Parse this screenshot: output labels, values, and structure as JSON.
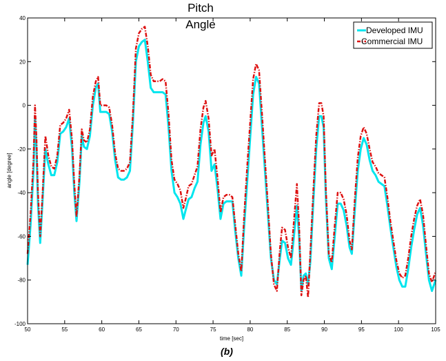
{
  "chart_data": {
    "type": "line",
    "title_lines": [
      "Pitch",
      "Angle"
    ],
    "xlabel": "time [sec]",
    "ylabel": "angle [degree]",
    "caption": "(b)",
    "xlim": [
      50,
      105
    ],
    "ylim": [
      -100,
      40
    ],
    "xticks": [
      50,
      55,
      60,
      65,
      70,
      75,
      80,
      85,
      90,
      95,
      100,
      105
    ],
    "yticks": [
      -100,
      -80,
      -60,
      -40,
      -20,
      0,
      20,
      40
    ],
    "grid": false,
    "legend_position": "top-right",
    "series": [
      {
        "name": "Developed IMU",
        "color": "#00e5ee",
        "style": "solid",
        "points": [
          [
            50.0,
            -73
          ],
          [
            50.4,
            -55
          ],
          [
            50.8,
            -30
          ],
          [
            51.0,
            -5
          ],
          [
            51.2,
            -20
          ],
          [
            51.4,
            -45
          ],
          [
            51.7,
            -63
          ],
          [
            52.0,
            -45
          ],
          [
            52.4,
            -20
          ],
          [
            52.8,
            -27
          ],
          [
            53.2,
            -32
          ],
          [
            53.6,
            -32
          ],
          [
            54.0,
            -26
          ],
          [
            54.4,
            -13
          ],
          [
            54.8,
            -12
          ],
          [
            55.2,
            -10
          ],
          [
            55.6,
            -6
          ],
          [
            56.0,
            -20
          ],
          [
            56.3,
            -40
          ],
          [
            56.6,
            -53
          ],
          [
            57.0,
            -35
          ],
          [
            57.3,
            -14
          ],
          [
            57.6,
            -19
          ],
          [
            58.0,
            -20
          ],
          [
            58.4,
            -14
          ],
          [
            58.8,
            0
          ],
          [
            59.2,
            8
          ],
          [
            59.5,
            10
          ],
          [
            59.8,
            -3
          ],
          [
            60.2,
            -3
          ],
          [
            60.6,
            -3
          ],
          [
            61.0,
            -4
          ],
          [
            61.4,
            -12
          ],
          [
            61.8,
            -25
          ],
          [
            62.2,
            -33
          ],
          [
            62.6,
            -34
          ],
          [
            63.0,
            -34
          ],
          [
            63.4,
            -33
          ],
          [
            63.8,
            -30
          ],
          [
            64.2,
            -8
          ],
          [
            64.6,
            20
          ],
          [
            65.0,
            27
          ],
          [
            65.4,
            29
          ],
          [
            65.8,
            30
          ],
          [
            66.2,
            20
          ],
          [
            66.6,
            8
          ],
          [
            67.0,
            6
          ],
          [
            67.4,
            6
          ],
          [
            67.8,
            6
          ],
          [
            68.2,
            6
          ],
          [
            68.6,
            5
          ],
          [
            69.0,
            -10
          ],
          [
            69.4,
            -30
          ],
          [
            69.8,
            -40
          ],
          [
            70.2,
            -42
          ],
          [
            70.6,
            -45
          ],
          [
            71.0,
            -52
          ],
          [
            71.3,
            -48
          ],
          [
            71.7,
            -43
          ],
          [
            72.1,
            -42
          ],
          [
            72.5,
            -38
          ],
          [
            72.9,
            -35
          ],
          [
            73.3,
            -18
          ],
          [
            73.7,
            -8
          ],
          [
            74.0,
            -5
          ],
          [
            74.4,
            -12
          ],
          [
            74.8,
            -30
          ],
          [
            75.2,
            -27
          ],
          [
            75.6,
            -38
          ],
          [
            76.0,
            -52
          ],
          [
            76.4,
            -45
          ],
          [
            76.8,
            -44
          ],
          [
            77.2,
            -44
          ],
          [
            77.6,
            -44
          ],
          [
            78.0,
            -58
          ],
          [
            78.4,
            -70
          ],
          [
            78.8,
            -78
          ],
          [
            79.2,
            -55
          ],
          [
            79.6,
            -35
          ],
          [
            80.0,
            -15
          ],
          [
            80.4,
            5
          ],
          [
            80.8,
            13
          ],
          [
            81.2,
            10
          ],
          [
            81.6,
            -10
          ],
          [
            82.0,
            -30
          ],
          [
            82.4,
            -50
          ],
          [
            82.8,
            -70
          ],
          [
            83.2,
            -80
          ],
          [
            83.6,
            -82
          ],
          [
            84.0,
            -70
          ],
          [
            84.3,
            -62
          ],
          [
            84.7,
            -63
          ],
          [
            85.1,
            -70
          ],
          [
            85.5,
            -73
          ],
          [
            85.9,
            -60
          ],
          [
            86.3,
            -46
          ],
          [
            86.6,
            -60
          ],
          [
            86.9,
            -85
          ],
          [
            87.2,
            -78
          ],
          [
            87.5,
            -77
          ],
          [
            87.8,
            -82
          ],
          [
            88.1,
            -72
          ],
          [
            88.5,
            -45
          ],
          [
            88.9,
            -20
          ],
          [
            89.3,
            -5
          ],
          [
            89.6,
            -5
          ],
          [
            89.9,
            -10
          ],
          [
            90.2,
            -42
          ],
          [
            90.6,
            -70
          ],
          [
            91.0,
            -75
          ],
          [
            91.4,
            -60
          ],
          [
            91.8,
            -45
          ],
          [
            92.2,
            -45
          ],
          [
            92.6,
            -48
          ],
          [
            93.0,
            -55
          ],
          [
            93.4,
            -65
          ],
          [
            93.7,
            -68
          ],
          [
            94.1,
            -48
          ],
          [
            94.5,
            -30
          ],
          [
            94.9,
            -20
          ],
          [
            95.3,
            -15
          ],
          [
            95.7,
            -18
          ],
          [
            96.1,
            -25
          ],
          [
            96.5,
            -30
          ],
          [
            96.9,
            -32
          ],
          [
            97.3,
            -35
          ],
          [
            97.7,
            -36
          ],
          [
            98.1,
            -37
          ],
          [
            98.5,
            -46
          ],
          [
            98.9,
            -56
          ],
          [
            99.3,
            -65
          ],
          [
            99.7,
            -74
          ],
          [
            100.1,
            -80
          ],
          [
            100.5,
            -83
          ],
          [
            100.9,
            -83
          ],
          [
            101.3,
            -75
          ],
          [
            101.7,
            -65
          ],
          [
            102.1,
            -57
          ],
          [
            102.5,
            -50
          ],
          [
            102.9,
            -47
          ],
          [
            103.3,
            -55
          ],
          [
            103.7,
            -68
          ],
          [
            104.1,
            -80
          ],
          [
            104.5,
            -85
          ],
          [
            105.0,
            -80
          ]
        ]
      },
      {
        "name": "Commercial IMU",
        "color": "#dd1111",
        "style": "dash-dot",
        "points": [
          [
            50.0,
            -68
          ],
          [
            50.4,
            -50
          ],
          [
            50.8,
            -25
          ],
          [
            51.0,
            0
          ],
          [
            51.2,
            -15
          ],
          [
            51.4,
            -40
          ],
          [
            51.7,
            -60
          ],
          [
            52.0,
            -42
          ],
          [
            52.4,
            -14
          ],
          [
            52.8,
            -23
          ],
          [
            53.2,
            -28
          ],
          [
            53.6,
            -29
          ],
          [
            54.0,
            -23
          ],
          [
            54.4,
            -9
          ],
          [
            54.8,
            -8
          ],
          [
            55.2,
            -6
          ],
          [
            55.6,
            -2
          ],
          [
            56.0,
            -16
          ],
          [
            56.3,
            -36
          ],
          [
            56.6,
            -51
          ],
          [
            57.0,
            -32
          ],
          [
            57.3,
            -11
          ],
          [
            57.6,
            -16
          ],
          [
            58.0,
            -17
          ],
          [
            58.4,
            -11
          ],
          [
            58.8,
            4
          ],
          [
            59.2,
            11
          ],
          [
            59.5,
            13
          ],
          [
            59.8,
            0
          ],
          [
            60.2,
            0
          ],
          [
            60.6,
            0
          ],
          [
            61.0,
            -1
          ],
          [
            61.4,
            -9
          ],
          [
            61.8,
            -22
          ],
          [
            62.2,
            -29
          ],
          [
            62.6,
            -30
          ],
          [
            63.0,
            -30
          ],
          [
            63.4,
            -29
          ],
          [
            63.8,
            -26
          ],
          [
            64.2,
            -4
          ],
          [
            64.6,
            26
          ],
          [
            65.0,
            33
          ],
          [
            65.4,
            35
          ],
          [
            65.8,
            36
          ],
          [
            66.2,
            27
          ],
          [
            66.6,
            14
          ],
          [
            67.0,
            11
          ],
          [
            67.4,
            11
          ],
          [
            67.8,
            11
          ],
          [
            68.2,
            12
          ],
          [
            68.6,
            11
          ],
          [
            69.0,
            -4
          ],
          [
            69.4,
            -25
          ],
          [
            69.8,
            -34
          ],
          [
            70.2,
            -36
          ],
          [
            70.6,
            -39
          ],
          [
            71.0,
            -47
          ],
          [
            71.3,
            -43
          ],
          [
            71.7,
            -37
          ],
          [
            72.1,
            -36
          ],
          [
            72.5,
            -32
          ],
          [
            72.9,
            -28
          ],
          [
            73.3,
            -11
          ],
          [
            73.7,
            -1
          ],
          [
            74.0,
            2
          ],
          [
            74.4,
            -6
          ],
          [
            74.8,
            -23
          ],
          [
            75.2,
            -20
          ],
          [
            75.6,
            -33
          ],
          [
            76.0,
            -49
          ],
          [
            76.4,
            -42
          ],
          [
            76.8,
            -41
          ],
          [
            77.2,
            -41
          ],
          [
            77.6,
            -42
          ],
          [
            78.0,
            -55
          ],
          [
            78.4,
            -68
          ],
          [
            78.8,
            -76
          ],
          [
            79.2,
            -50
          ],
          [
            79.6,
            -28
          ],
          [
            80.0,
            -8
          ],
          [
            80.4,
            12
          ],
          [
            80.8,
            19
          ],
          [
            81.2,
            16
          ],
          [
            81.6,
            -4
          ],
          [
            82.0,
            -25
          ],
          [
            82.4,
            -46
          ],
          [
            82.8,
            -68
          ],
          [
            83.2,
            -82
          ],
          [
            83.6,
            -85
          ],
          [
            84.0,
            -66
          ],
          [
            84.3,
            -56
          ],
          [
            84.7,
            -57
          ],
          [
            85.1,
            -65
          ],
          [
            85.5,
            -70
          ],
          [
            85.9,
            -53
          ],
          [
            86.3,
            -36
          ],
          [
            86.6,
            -55
          ],
          [
            86.9,
            -87
          ],
          [
            87.2,
            -80
          ],
          [
            87.5,
            -78
          ],
          [
            87.8,
            -88
          ],
          [
            88.1,
            -68
          ],
          [
            88.5,
            -40
          ],
          [
            88.9,
            -14
          ],
          [
            89.3,
            1
          ],
          [
            89.6,
            1
          ],
          [
            89.9,
            -5
          ],
          [
            90.2,
            -38
          ],
          [
            90.6,
            -68
          ],
          [
            91.0,
            -72
          ],
          [
            91.4,
            -55
          ],
          [
            91.8,
            -40
          ],
          [
            92.2,
            -40
          ],
          [
            92.6,
            -43
          ],
          [
            93.0,
            -50
          ],
          [
            93.4,
            -62
          ],
          [
            93.7,
            -66
          ],
          [
            94.1,
            -43
          ],
          [
            94.5,
            -24
          ],
          [
            94.9,
            -14
          ],
          [
            95.3,
            -10
          ],
          [
            95.7,
            -13
          ],
          [
            96.1,
            -20
          ],
          [
            96.5,
            -26
          ],
          [
            96.9,
            -28
          ],
          [
            97.3,
            -31
          ],
          [
            97.7,
            -32
          ],
          [
            98.1,
            -33
          ],
          [
            98.5,
            -42
          ],
          [
            98.9,
            -53
          ],
          [
            99.3,
            -62
          ],
          [
            99.7,
            -71
          ],
          [
            100.1,
            -77
          ],
          [
            100.5,
            -79
          ],
          [
            100.9,
            -78
          ],
          [
            101.3,
            -70
          ],
          [
            101.7,
            -60
          ],
          [
            102.1,
            -52
          ],
          [
            102.5,
            -46
          ],
          [
            102.9,
            -43
          ],
          [
            103.3,
            -50
          ],
          [
            103.7,
            -64
          ],
          [
            104.1,
            -77
          ],
          [
            104.5,
            -81
          ],
          [
            105.0,
            -76
          ]
        ]
      }
    ]
  }
}
